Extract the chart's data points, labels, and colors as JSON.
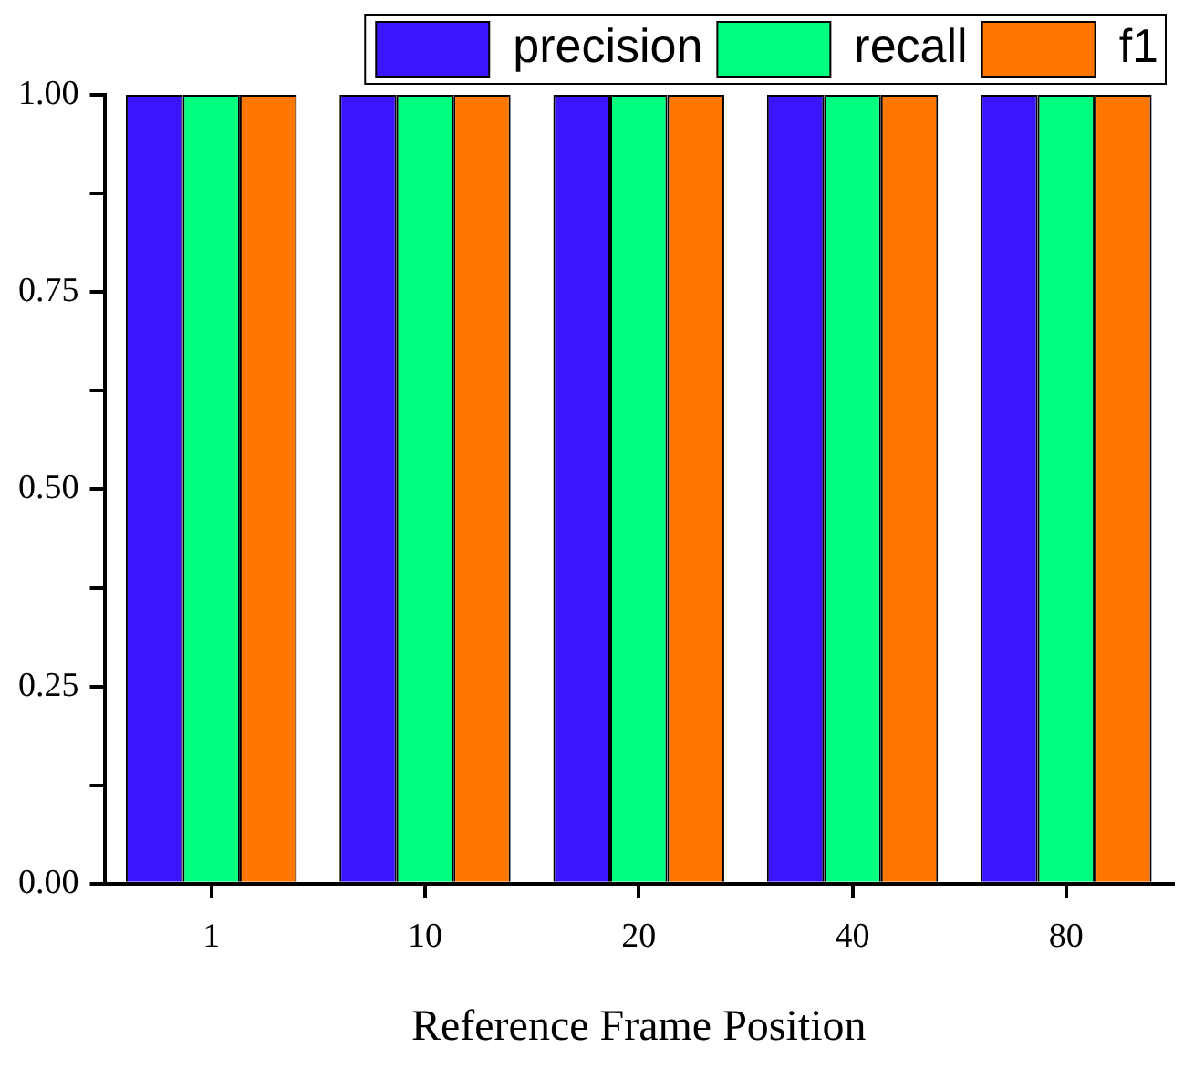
{
  "chart_data": {
    "type": "bar",
    "xlabel": "Reference Frame Position",
    "categories": [
      "1",
      "10",
      "20",
      "40",
      "80"
    ],
    "series": [
      {
        "name": "precision",
        "color": "#3a16ff",
        "values": [
          1,
          1,
          1,
          1,
          1
        ]
      },
      {
        "name": "recall",
        "color": "#00ff7f",
        "values": [
          1,
          1,
          1,
          1,
          1
        ]
      },
      {
        "name": "f1",
        "color": "#ff7700",
        "values": [
          1,
          1,
          1,
          1,
          1
        ]
      }
    ],
    "ylim": [
      0,
      1
    ],
    "yticks": [
      {
        "value": 0,
        "label": "0.00"
      },
      {
        "value": 0.125,
        "label": null
      },
      {
        "value": 0.25,
        "label": "0.25"
      },
      {
        "value": 0.375,
        "label": null
      },
      {
        "value": 0.5,
        "label": "0.50"
      },
      {
        "value": 0.625,
        "label": null
      },
      {
        "value": 0.75,
        "label": "0.75"
      },
      {
        "value": 0.875,
        "label": null
      },
      {
        "value": 1,
        "label": "1.00"
      }
    ],
    "grid": false,
    "legend": "top right"
  }
}
